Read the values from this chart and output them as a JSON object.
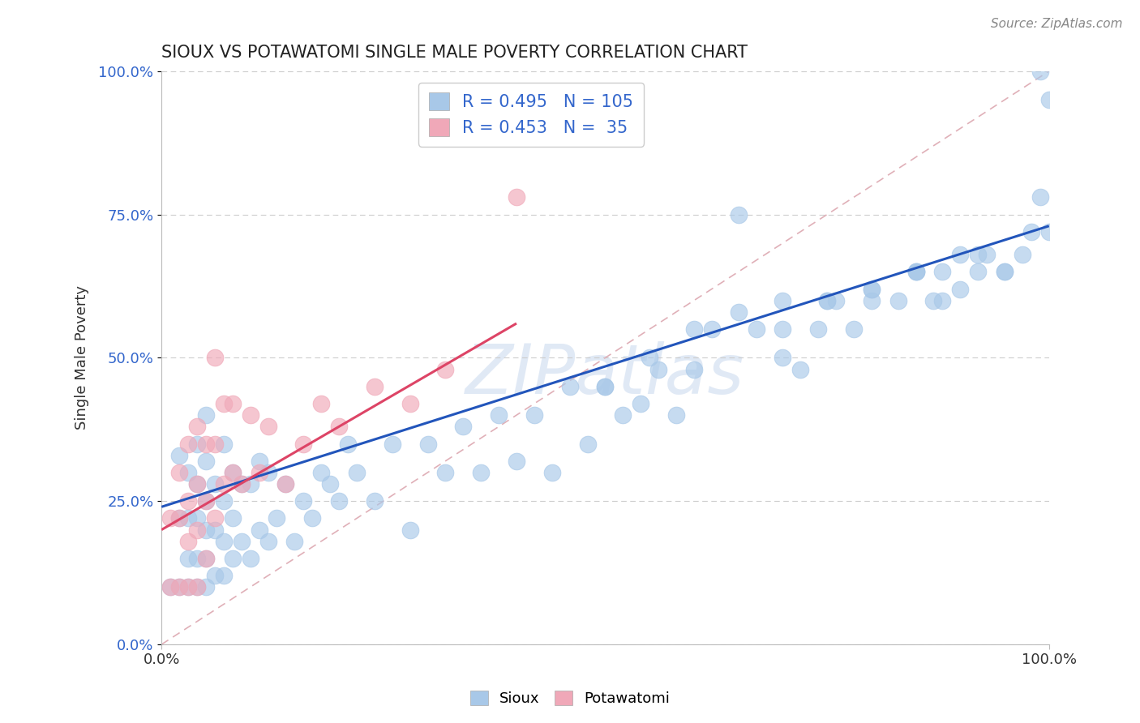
{
  "title": "SIOUX VS POTAWATOMI SINGLE MALE POVERTY CORRELATION CHART",
  "ylabel": "Single Male Poverty",
  "source": "Source: ZipAtlas.com",
  "sioux_R": 0.495,
  "sioux_N": 105,
  "potawatomi_R": 0.453,
  "potawatomi_N": 35,
  "sioux_color": "#a8c8e8",
  "potawatomi_color": "#f0a8b8",
  "sioux_line_color": "#2255bb",
  "potawatomi_line_color": "#dd4466",
  "ref_line_color": "#e0b0b8",
  "grid_color": "#cccccc",
  "background_color": "#ffffff",
  "title_color": "#222222",
  "axis_label_color": "#333333",
  "tick_color": "#333333",
  "right_tick_color": "#3366cc",
  "legend_text_color": "#3366cc",
  "watermark": "ZIPatlas",
  "sioux_x": [
    0.01,
    0.02,
    0.02,
    0.02,
    0.03,
    0.03,
    0.03,
    0.03,
    0.04,
    0.04,
    0.04,
    0.04,
    0.04,
    0.05,
    0.05,
    0.05,
    0.05,
    0.05,
    0.05,
    0.06,
    0.06,
    0.06,
    0.07,
    0.07,
    0.07,
    0.07,
    0.08,
    0.08,
    0.08,
    0.09,
    0.09,
    0.1,
    0.1,
    0.11,
    0.11,
    0.12,
    0.12,
    0.13,
    0.14,
    0.15,
    0.16,
    0.17,
    0.18,
    0.19,
    0.2,
    0.21,
    0.22,
    0.24,
    0.26,
    0.28,
    0.3,
    0.32,
    0.34,
    0.36,
    0.38,
    0.4,
    0.42,
    0.44,
    0.46,
    0.48,
    0.5,
    0.52,
    0.54,
    0.56,
    0.58,
    0.6,
    0.62,
    0.65,
    0.67,
    0.7,
    0.72,
    0.74,
    0.76,
    0.78,
    0.8,
    0.83,
    0.85,
    0.87,
    0.88,
    0.9,
    0.92,
    0.93,
    0.95,
    0.97,
    0.98,
    0.99,
    1.0,
    1.0,
    0.5,
    0.55,
    0.6,
    0.65,
    0.7,
    0.75,
    0.8,
    0.85,
    0.9,
    0.7,
    0.75,
    0.8,
    0.85,
    0.88,
    0.92,
    0.95,
    0.99
  ],
  "sioux_y": [
    0.1,
    0.1,
    0.22,
    0.33,
    0.1,
    0.15,
    0.22,
    0.3,
    0.1,
    0.15,
    0.22,
    0.28,
    0.35,
    0.1,
    0.15,
    0.2,
    0.25,
    0.32,
    0.4,
    0.12,
    0.2,
    0.28,
    0.12,
    0.18,
    0.25,
    0.35,
    0.15,
    0.22,
    0.3,
    0.18,
    0.28,
    0.15,
    0.28,
    0.2,
    0.32,
    0.18,
    0.3,
    0.22,
    0.28,
    0.18,
    0.25,
    0.22,
    0.3,
    0.28,
    0.25,
    0.35,
    0.3,
    0.25,
    0.35,
    0.2,
    0.35,
    0.3,
    0.38,
    0.3,
    0.4,
    0.32,
    0.4,
    0.3,
    0.45,
    0.35,
    0.45,
    0.4,
    0.42,
    0.48,
    0.4,
    0.48,
    0.55,
    0.75,
    0.55,
    0.5,
    0.48,
    0.55,
    0.6,
    0.55,
    0.6,
    0.6,
    0.65,
    0.6,
    0.65,
    0.62,
    0.65,
    0.68,
    0.65,
    0.68,
    0.72,
    0.78,
    0.72,
    0.95,
    0.45,
    0.5,
    0.55,
    0.58,
    0.6,
    0.6,
    0.62,
    0.65,
    0.68,
    0.55,
    0.6,
    0.62,
    0.65,
    0.6,
    0.68,
    0.65,
    1.0
  ],
  "potawatomi_x": [
    0.01,
    0.01,
    0.02,
    0.02,
    0.02,
    0.03,
    0.03,
    0.03,
    0.03,
    0.04,
    0.04,
    0.04,
    0.04,
    0.05,
    0.05,
    0.05,
    0.06,
    0.06,
    0.06,
    0.07,
    0.07,
    0.08,
    0.08,
    0.09,
    0.1,
    0.11,
    0.12,
    0.14,
    0.16,
    0.18,
    0.2,
    0.24,
    0.28,
    0.32,
    0.4
  ],
  "potawatomi_y": [
    0.1,
    0.22,
    0.1,
    0.22,
    0.3,
    0.1,
    0.18,
    0.25,
    0.35,
    0.1,
    0.2,
    0.28,
    0.38,
    0.15,
    0.25,
    0.35,
    0.22,
    0.35,
    0.5,
    0.28,
    0.42,
    0.3,
    0.42,
    0.28,
    0.4,
    0.3,
    0.38,
    0.28,
    0.35,
    0.42,
    0.38,
    0.45,
    0.42,
    0.48,
    0.78
  ],
  "sioux_line_x": [
    0.0,
    1.0
  ],
  "sioux_line_y": [
    0.24,
    0.73
  ],
  "potawatomi_line_x": [
    0.0,
    0.4
  ],
  "potawatomi_line_y": [
    0.2,
    0.56
  ],
  "ref_line_x": [
    0.0,
    1.0
  ],
  "ref_line_y": [
    0.0,
    1.0
  ],
  "xlim": [
    0.0,
    1.0
  ],
  "ylim": [
    0.0,
    1.0
  ],
  "ytick_positions": [
    0.0,
    0.25,
    0.5,
    0.75,
    1.0
  ],
  "ytick_labels": [
    "0.0%",
    "25.0%",
    "50.0%",
    "75.0%",
    "100.0%"
  ],
  "xtick_positions": [
    0.0,
    1.0
  ],
  "xtick_labels": [
    "0.0%",
    "100.0%"
  ]
}
